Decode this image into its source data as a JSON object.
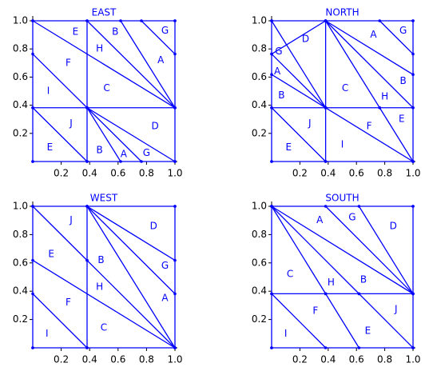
{
  "chart_data": [
    {
      "type": "line",
      "title": "EAST",
      "color": "#0000ff",
      "xlim": [
        0,
        1
      ],
      "ylim": [
        0,
        1
      ],
      "xticks": [
        0.2,
        0.4,
        0.6,
        0.8,
        {
          "value": 1,
          "label": "1.0"
        }
      ],
      "yticks": [
        0.2,
        0.4,
        0.6,
        0.8,
        {
          "value": 1,
          "label": "1.0"
        }
      ],
      "segments": [
        [
          [
            0,
            0
          ],
          [
            1,
            0
          ]
        ],
        [
          [
            1,
            0
          ],
          [
            1,
            1
          ]
        ],
        [
          [
            1,
            1
          ],
          [
            0,
            1
          ]
        ],
        [
          [
            0,
            1
          ],
          [
            0,
            0
          ]
        ],
        [
          [
            0.382,
            0
          ],
          [
            0.382,
            1
          ]
        ],
        [
          [
            0,
            0.382
          ],
          [
            1,
            0.382
          ]
        ],
        [
          [
            0,
            1
          ],
          [
            1,
            0.382
          ]
        ],
        [
          [
            0,
            0.764
          ],
          [
            0.382,
            0.382
          ]
        ],
        [
          [
            0,
            0.382
          ],
          [
            0.382,
            0
          ]
        ],
        [
          [
            0.382,
            0.382
          ],
          [
            0.618,
            0
          ]
        ],
        [
          [
            0.382,
            0.382
          ],
          [
            0.764,
            0
          ]
        ],
        [
          [
            0.382,
            0.382
          ],
          [
            1,
            0
          ]
        ],
        [
          [
            0.382,
            1
          ],
          [
            1,
            0.382
          ]
        ],
        [
          [
            0.618,
            1
          ],
          [
            1,
            0.382
          ]
        ],
        [
          [
            0.764,
            1
          ],
          [
            1,
            0.764
          ]
        ]
      ],
      "annotations": [
        {
          "text": "E",
          "x": 0.3,
          "y": 0.92
        },
        {
          "text": "B",
          "x": 0.58,
          "y": 0.92
        },
        {
          "text": "G",
          "x": 0.93,
          "y": 0.93
        },
        {
          "text": "H",
          "x": 0.47,
          "y": 0.8
        },
        {
          "text": "A",
          "x": 0.9,
          "y": 0.72
        },
        {
          "text": "F",
          "x": 0.25,
          "y": 0.7
        },
        {
          "text": "I",
          "x": 0.11,
          "y": 0.5
        },
        {
          "text": "C",
          "x": 0.52,
          "y": 0.52
        },
        {
          "text": "J",
          "x": 0.27,
          "y": 0.27
        },
        {
          "text": "E",
          "x": 0.12,
          "y": 0.1
        },
        {
          "text": "B",
          "x": 0.47,
          "y": 0.08
        },
        {
          "text": "A",
          "x": 0.64,
          "y": 0.05
        },
        {
          "text": "G",
          "x": 0.8,
          "y": 0.06
        },
        {
          "text": "D",
          "x": 0.86,
          "y": 0.25
        }
      ]
    },
    {
      "type": "line",
      "title": "NORTH",
      "color": "#0000ff",
      "xlim": [
        0,
        1
      ],
      "ylim": [
        0,
        1
      ],
      "xticks": [
        0.2,
        0.4,
        0.6,
        0.8,
        {
          "value": 1,
          "label": "1.0"
        }
      ],
      "yticks": [
        0.2,
        0.4,
        0.6,
        0.8,
        {
          "value": 1,
          "label": "1.0"
        }
      ],
      "segments": [
        [
          [
            0,
            0
          ],
          [
            1,
            0
          ]
        ],
        [
          [
            1,
            0
          ],
          [
            1,
            1
          ]
        ],
        [
          [
            1,
            1
          ],
          [
            0,
            1
          ]
        ],
        [
          [
            0,
            1
          ],
          [
            0,
            0
          ]
        ],
        [
          [
            0.382,
            0
          ],
          [
            0.382,
            1
          ]
        ],
        [
          [
            0,
            0.382
          ],
          [
            1,
            0.382
          ]
        ],
        [
          [
            0,
            1
          ],
          [
            0.382,
            0.382
          ]
        ],
        [
          [
            0,
            0.764
          ],
          [
            0.382,
            0.382
          ]
        ],
        [
          [
            0,
            0.618
          ],
          [
            0.382,
            0.382
          ]
        ],
        [
          [
            0,
            0.764
          ],
          [
            0.382,
            1
          ]
        ],
        [
          [
            0.764,
            1
          ],
          [
            1,
            0.764
          ]
        ],
        [
          [
            0.382,
            1
          ],
          [
            1,
            0.618
          ]
        ],
        [
          [
            0.382,
            1
          ],
          [
            1,
            0.382
          ]
        ],
        [
          [
            0.382,
            1
          ],
          [
            0.764,
            0.382
          ]
        ],
        [
          [
            0,
            0.382
          ],
          [
            0.382,
            0
          ]
        ],
        [
          [
            0.382,
            0.382
          ],
          [
            1,
            0
          ]
        ],
        [
          [
            0.764,
            0.382
          ],
          [
            1,
            0
          ]
        ]
      ],
      "annotations": [
        {
          "text": "D",
          "x": 0.24,
          "y": 0.87
        },
        {
          "text": "A",
          "x": 0.72,
          "y": 0.9
        },
        {
          "text": "G",
          "x": 0.93,
          "y": 0.93
        },
        {
          "text": "G",
          "x": 0.05,
          "y": 0.78
        },
        {
          "text": "A",
          "x": 0.04,
          "y": 0.64
        },
        {
          "text": "B",
          "x": 0.07,
          "y": 0.47
        },
        {
          "text": "C",
          "x": 0.52,
          "y": 0.52
        },
        {
          "text": "B",
          "x": 0.93,
          "y": 0.57
        },
        {
          "text": "H",
          "x": 0.8,
          "y": 0.46
        },
        {
          "text": "J",
          "x": 0.27,
          "y": 0.27
        },
        {
          "text": "F",
          "x": 0.69,
          "y": 0.25
        },
        {
          "text": "E",
          "x": 0.92,
          "y": 0.3
        },
        {
          "text": "E",
          "x": 0.12,
          "y": 0.1
        },
        {
          "text": "I",
          "x": 0.5,
          "y": 0.12
        }
      ]
    },
    {
      "type": "line",
      "title": "WEST",
      "color": "#0000ff",
      "xlim": [
        0,
        1
      ],
      "ylim": [
        0,
        1
      ],
      "xticks": [
        0.2,
        0.4,
        0.6,
        0.8,
        {
          "value": 1,
          "label": "1.0"
        }
      ],
      "yticks": [
        0.2,
        0.4,
        0.6,
        0.8,
        {
          "value": 1,
          "label": "1.0"
        }
      ],
      "segments": [
        [
          [
            0,
            0
          ],
          [
            1,
            0
          ]
        ],
        [
          [
            1,
            0
          ],
          [
            1,
            1
          ]
        ],
        [
          [
            1,
            1
          ],
          [
            0,
            1
          ]
        ],
        [
          [
            0,
            1
          ],
          [
            0,
            0
          ]
        ],
        [
          [
            0.382,
            0
          ],
          [
            0.382,
            1
          ]
        ],
        [
          [
            0,
            1
          ],
          [
            0.382,
            0.618
          ]
        ],
        [
          [
            0,
            0.618
          ],
          [
            1,
            0
          ]
        ],
        [
          [
            0,
            0.382
          ],
          [
            0.382,
            0
          ]
        ],
        [
          [
            0.382,
            1
          ],
          [
            1,
            0.618
          ]
        ],
        [
          [
            0.382,
            1
          ],
          [
            1,
            0.382
          ]
        ],
        [
          [
            0.382,
            1
          ],
          [
            1,
            0
          ]
        ],
        [
          [
            0.382,
            0.618
          ],
          [
            1,
            0
          ]
        ]
      ],
      "annotations": [
        {
          "text": "J",
          "x": 0.27,
          "y": 0.9
        },
        {
          "text": "E",
          "x": 0.13,
          "y": 0.66
        },
        {
          "text": "F",
          "x": 0.25,
          "y": 0.32
        },
        {
          "text": "I",
          "x": 0.1,
          "y": 0.1
        },
        {
          "text": "B",
          "x": 0.48,
          "y": 0.62
        },
        {
          "text": "H",
          "x": 0.47,
          "y": 0.43
        },
        {
          "text": "C",
          "x": 0.5,
          "y": 0.14
        },
        {
          "text": "D",
          "x": 0.85,
          "y": 0.86
        },
        {
          "text": "G",
          "x": 0.93,
          "y": 0.58
        },
        {
          "text": "A",
          "x": 0.93,
          "y": 0.35
        }
      ]
    },
    {
      "type": "line",
      "title": "SOUTH",
      "color": "#0000ff",
      "xlim": [
        0,
        1
      ],
      "ylim": [
        0,
        1
      ],
      "xticks": [
        0.2,
        0.4,
        0.6,
        0.8,
        {
          "value": 1,
          "label": "1.0"
        }
      ],
      "yticks": [
        0.2,
        0.4,
        0.6,
        0.8,
        {
          "value": 1,
          "label": "1.0"
        }
      ],
      "segments": [
        [
          [
            0,
            0
          ],
          [
            1,
            0
          ]
        ],
        [
          [
            1,
            0
          ],
          [
            1,
            1
          ]
        ],
        [
          [
            1,
            1
          ],
          [
            0,
            1
          ]
        ],
        [
          [
            0,
            1
          ],
          [
            0,
            0
          ]
        ],
        [
          [
            0,
            0.382
          ],
          [
            1,
            0.382
          ]
        ],
        [
          [
            0,
            1
          ],
          [
            0.382,
            0.382
          ]
        ],
        [
          [
            0,
            1
          ],
          [
            0.618,
            0.382
          ]
        ],
        [
          [
            0,
            1
          ],
          [
            1,
            0.382
          ]
        ],
        [
          [
            0.382,
            1
          ],
          [
            1,
            0.382
          ]
        ],
        [
          [
            0.618,
            1
          ],
          [
            1,
            0.382
          ]
        ],
        [
          [
            0,
            0.382
          ],
          [
            0.382,
            0
          ]
        ],
        [
          [
            0.382,
            0.382
          ],
          [
            0.618,
            0
          ]
        ],
        [
          [
            0.618,
            0.382
          ],
          [
            1,
            0
          ]
        ]
      ],
      "annotations": [
        {
          "text": "A",
          "x": 0.34,
          "y": 0.9
        },
        {
          "text": "G",
          "x": 0.57,
          "y": 0.92
        },
        {
          "text": "D",
          "x": 0.86,
          "y": 0.86
        },
        {
          "text": "C",
          "x": 0.13,
          "y": 0.52
        },
        {
          "text": "H",
          "x": 0.42,
          "y": 0.46
        },
        {
          "text": "B",
          "x": 0.65,
          "y": 0.48
        },
        {
          "text": "I",
          "x": 0.1,
          "y": 0.1
        },
        {
          "text": "F",
          "x": 0.31,
          "y": 0.26
        },
        {
          "text": "E",
          "x": 0.68,
          "y": 0.12
        },
        {
          "text": "J",
          "x": 0.88,
          "y": 0.27
        }
      ]
    }
  ]
}
